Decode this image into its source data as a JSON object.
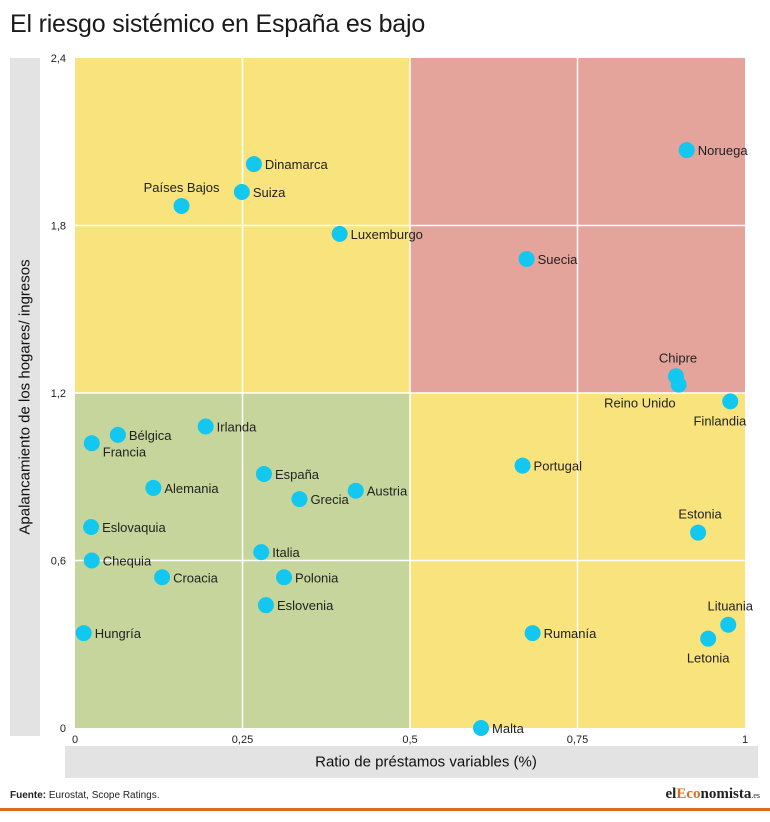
{
  "header": {
    "title": "El riesgo sistémico en España es bajo"
  },
  "footer": {
    "source_label": "Fuente:",
    "source_text": "Eurostat, Scope Ratings.",
    "brand_prefix": "el",
    "brand_accent": "Eco",
    "brand_suffix": "nomista",
    "brand_small": ".es"
  },
  "colors": {
    "quadrant_green": "#c6d59b",
    "quadrant_yellow": "#f9e37c",
    "quadrant_red": "#e4a39b",
    "point": "#12c7f0",
    "brand_accent": "#e36a1c"
  },
  "chart_data": {
    "type": "scatter",
    "title": "El riesgo sistémico en España es bajo",
    "xlabel": "Ratio de préstamos variables (%)",
    "ylabel": "Apalancamiento de los hogares/ ingresos",
    "xlim": [
      0,
      1
    ],
    "ylim": [
      0,
      2.4
    ],
    "xticks": [
      {
        "value": 0,
        "label": "0"
      },
      {
        "value": 0.25,
        "label": "0,25"
      },
      {
        "value": 0.5,
        "label": "0,5"
      },
      {
        "value": 0.75,
        "label": "0,75"
      },
      {
        "value": 1,
        "label": "1"
      }
    ],
    "yticks": [
      {
        "value": 0,
        "label": "0"
      },
      {
        "value": 0.6,
        "label": "0,6"
      },
      {
        "value": 1.2,
        "label": "1,2"
      },
      {
        "value": 1.8,
        "label": "1,8"
      },
      {
        "value": 2.4,
        "label": "2,4"
      }
    ],
    "grid": true,
    "quadrant_split": {
      "x": 0.5,
      "y": 1.2
    },
    "points": [
      {
        "label": "Noruega",
        "x": 0.913,
        "y": 2.07,
        "label_pos": "right"
      },
      {
        "label": "Dinamarca",
        "x": 0.267,
        "y": 2.02,
        "label_pos": "right"
      },
      {
        "label": "Suiza",
        "x": 0.249,
        "y": 1.92,
        "label_pos": "right"
      },
      {
        "label": "Países Bajos",
        "x": 0.159,
        "y": 1.87,
        "label_pos": "above"
      },
      {
        "label": "Luxemburgo",
        "x": 0.395,
        "y": 1.77,
        "label_pos": "right"
      },
      {
        "label": "Suecia",
        "x": 0.674,
        "y": 1.68,
        "label_pos": "right"
      },
      {
        "label": "Chipre",
        "x": 0.897,
        "y": 1.26,
        "label_pos": "above"
      },
      {
        "label": "Reino Unido",
        "x": 0.901,
        "y": 1.23,
        "label_pos": "below-left"
      },
      {
        "label": "Finlandia",
        "x": 0.978,
        "y": 1.17,
        "label_pos": "below-left"
      },
      {
        "label": "Irlanda",
        "x": 0.195,
        "y": 1.08,
        "label_pos": "right"
      },
      {
        "label": "Bélgica",
        "x": 0.064,
        "y": 1.05,
        "label_pos": "right"
      },
      {
        "label": "Francia",
        "x": 0.025,
        "y": 1.02,
        "label_pos": "below-right"
      },
      {
        "label": "Portugal",
        "x": 0.668,
        "y": 0.94,
        "label_pos": "right"
      },
      {
        "label": "España",
        "x": 0.282,
        "y": 0.91,
        "label_pos": "right"
      },
      {
        "label": "Alemania",
        "x": 0.117,
        "y": 0.86,
        "label_pos": "right"
      },
      {
        "label": "Austria",
        "x": 0.419,
        "y": 0.85,
        "label_pos": "right"
      },
      {
        "label": "Grecia",
        "x": 0.335,
        "y": 0.82,
        "label_pos": "right"
      },
      {
        "label": "Eslovaquia",
        "x": 0.024,
        "y": 0.72,
        "label_pos": "right"
      },
      {
        "label": "Estonia",
        "x": 0.93,
        "y": 0.7,
        "label_pos": "above"
      },
      {
        "label": "Italia",
        "x": 0.278,
        "y": 0.63,
        "label_pos": "right"
      },
      {
        "label": "Chequia",
        "x": 0.025,
        "y": 0.6,
        "label_pos": "right"
      },
      {
        "label": "Croacia",
        "x": 0.13,
        "y": 0.54,
        "label_pos": "right"
      },
      {
        "label": "Polonia",
        "x": 0.312,
        "y": 0.54,
        "label_pos": "right"
      },
      {
        "label": "Eslovenia",
        "x": 0.285,
        "y": 0.44,
        "label_pos": "right"
      },
      {
        "label": "Lituania",
        "x": 0.975,
        "y": 0.37,
        "label_pos": "above"
      },
      {
        "label": "Letonia",
        "x": 0.945,
        "y": 0.32,
        "label_pos": "below"
      },
      {
        "label": "Hungría",
        "x": 0.013,
        "y": 0.34,
        "label_pos": "right"
      },
      {
        "label": "Rumanía",
        "x": 0.683,
        "y": 0.34,
        "label_pos": "right"
      },
      {
        "label": "Malta",
        "x": 0.606,
        "y": 0.0,
        "label_pos": "right"
      }
    ]
  }
}
